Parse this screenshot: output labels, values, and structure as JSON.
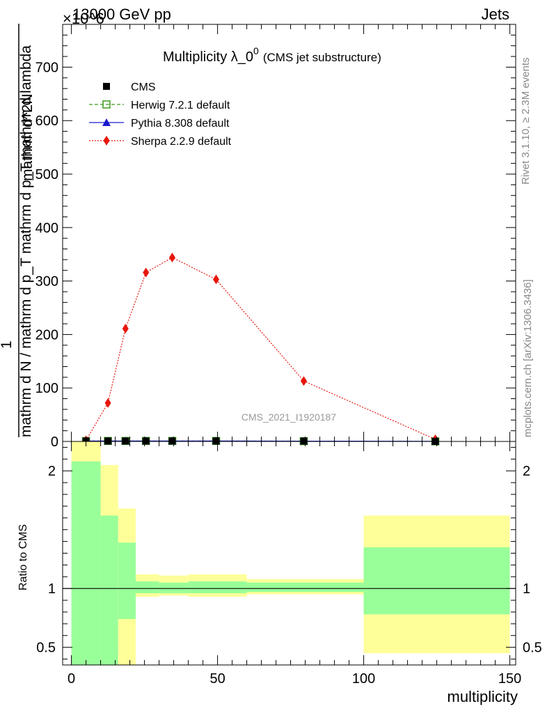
{
  "header": {
    "left": "13000 GeV pp",
    "right": "Jets",
    "exponent": "×10^6"
  },
  "side_text": {
    "rivet": "Rivet 3.1.10, ≥ 2.3M events",
    "mcplots": "mcplots.cern.ch [arXiv:1306.3436]"
  },
  "chart_data": [
    {
      "type": "line",
      "title_main": "Multiplicity λ_0",
      "title_sup": "0",
      "title_sub": "(CMS jet substructure)",
      "xlabel": "multiplicity",
      "ylabel_numerator": "1",
      "ylabel_denominator": "mathrm d N / mathrm d p_T mathrm d p_T mathrm d lambda",
      "ylabel_top_fraction": "mathrm d^2N",
      "y_exponent": "×10^6",
      "watermark": "CMS_2021_I1920187",
      "xlim": [
        -3,
        152
      ],
      "ylim": [
        0,
        780
      ],
      "x_ticks": [
        0,
        50,
        100,
        150
      ],
      "y_ticks": [
        100,
        200,
        300,
        400,
        500,
        600,
        700
      ],
      "legend_position": "top-left",
      "legend": [
        {
          "label": "CMS",
          "color": "#000000",
          "marker": "square-filled",
          "line": "none"
        },
        {
          "label": "Herwig 7.2.1 default",
          "color": "#3c9b1a",
          "marker": "square-open",
          "line": "dashed"
        },
        {
          "label": "Pythia 8.308 default",
          "color": "#1a1ad0",
          "marker": "triangle",
          "line": "solid"
        },
        {
          "label": "Sherpa 2.2.9 default",
          "color": "#e8160c",
          "marker": "diamond",
          "line": "dotted"
        }
      ],
      "series": [
        {
          "name": "CMS",
          "x": [
            5,
            12.5,
            18.5,
            25.5,
            34.5,
            49.5,
            79.5,
            124.5
          ],
          "y": [
            0.8,
            0.9,
            0.9,
            0.9,
            0.9,
            0.9,
            0.6,
            0.2
          ]
        },
        {
          "name": "Herwig 7.2.1 default",
          "x": [
            5,
            12.5,
            18.5,
            25.5,
            34.5,
            49.5,
            79.5,
            124.5
          ],
          "y": [
            0.8,
            0.9,
            0.9,
            0.9,
            0.9,
            0.9,
            0.6,
            0.2
          ]
        },
        {
          "name": "Pythia 8.308 default",
          "x": [
            5,
            12.5,
            18.5,
            25.5,
            34.5,
            49.5,
            79.5,
            124.5
          ],
          "y": [
            0.8,
            0.9,
            0.9,
            0.9,
            0.9,
            0.9,
            0.6,
            0.2
          ]
        },
        {
          "name": "Sherpa 2.2.9 default",
          "x": [
            5,
            12.5,
            18.5,
            25.5,
            34.5,
            49.5,
            79.5,
            124.5
          ],
          "y": [
            2,
            72,
            211,
            316,
            344,
            303,
            113,
            4
          ]
        }
      ]
    },
    {
      "type": "area",
      "ylabel": "Ratio to CMS",
      "xlabel": "multiplicity",
      "xlim": [
        -3,
        152
      ],
      "ylim": [
        0.35,
        2.25
      ],
      "x_ticks": [
        0,
        50,
        100,
        150
      ],
      "y_ticks": [
        0.5,
        1,
        2
      ],
      "y_tick_labels": [
        "0.5",
        "1",
        "2"
      ],
      "reference_line": 1,
      "bands": {
        "bins": [
          [
            0,
            10
          ],
          [
            10,
            16
          ],
          [
            16,
            22
          ],
          [
            22,
            30
          ],
          [
            30,
            40
          ],
          [
            40,
            60
          ],
          [
            60,
            100
          ],
          [
            100,
            150
          ]
        ],
        "green_low": [
          0.35,
          0.35,
          0.74,
          0.96,
          0.96,
          0.96,
          0.97,
          0.78
        ],
        "green_high": [
          2.08,
          1.62,
          1.39,
          1.06,
          1.05,
          1.06,
          1.05,
          1.35
        ],
        "yellow_low": [
          0.35,
          0.45,
          0.35,
          0.93,
          0.94,
          0.93,
          0.95,
          0.45
        ],
        "yellow_high": [
          2.25,
          2.05,
          1.68,
          1.12,
          1.11,
          1.12,
          1.08,
          1.62
        ],
        "green_color": "#99ff99",
        "yellow_color": "#ffff99"
      }
    }
  ]
}
